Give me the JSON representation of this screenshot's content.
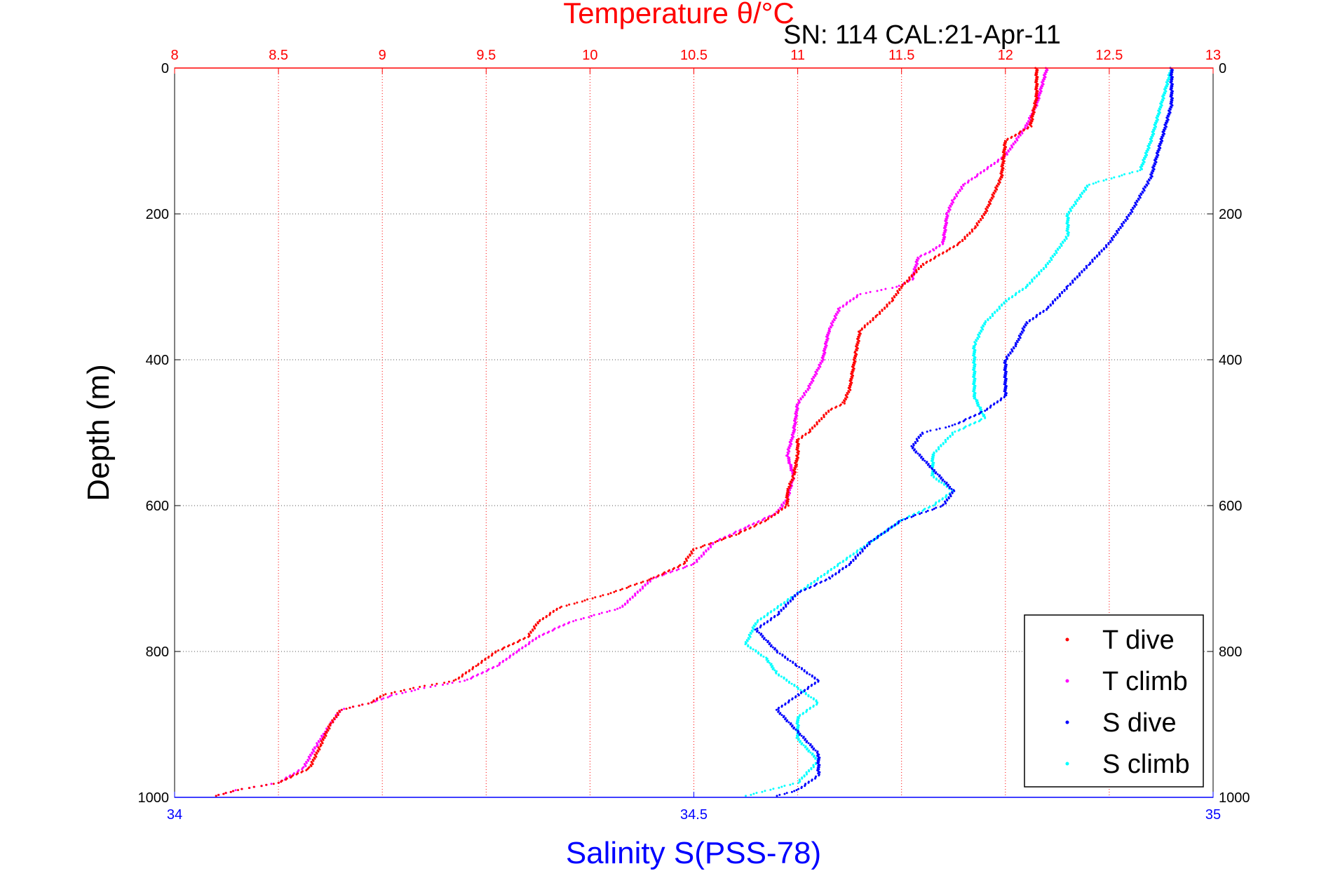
{
  "chart_data": {
    "type": "scatter",
    "title": "Temperature θ/°C",
    "subtitle": "SN: 114  CAL:21-Apr-11",
    "xlabel": "Salinity S(PSS-78)",
    "ylabel": "Depth (m)",
    "x_top": {
      "label": "Temperature θ/°C",
      "range": [
        8,
        13
      ],
      "ticks": [
        "8",
        "8.5",
        "9",
        "9.5",
        "10",
        "10.5",
        "11",
        "11.5",
        "12",
        "12.5",
        "13"
      ],
      "color": "#ff0000"
    },
    "x_bottom": {
      "label": "Salinity S(PSS-78)",
      "range": [
        34,
        35
      ],
      "ticks": [
        "34",
        "34.5",
        "35"
      ],
      "color": "#0000ff"
    },
    "y": {
      "range": [
        0,
        1000
      ],
      "reversed": true,
      "ticks": [
        "0",
        "200",
        "400",
        "600",
        "800",
        "1000"
      ]
    },
    "grid": true,
    "legend_position": "bottom-right",
    "series": [
      {
        "name": "T dive",
        "axis": "temperature",
        "color": "#ff0000",
        "points": [
          [
            12.15,
            0
          ],
          [
            12.15,
            40
          ],
          [
            12.12,
            80
          ],
          [
            12.0,
            100
          ],
          [
            11.98,
            150
          ],
          [
            11.9,
            200
          ],
          [
            11.85,
            220
          ],
          [
            11.78,
            240
          ],
          [
            11.72,
            250
          ],
          [
            11.6,
            270
          ],
          [
            11.5,
            300
          ],
          [
            11.45,
            320
          ],
          [
            11.38,
            340
          ],
          [
            11.3,
            360
          ],
          [
            11.28,
            390
          ],
          [
            11.25,
            440
          ],
          [
            11.22,
            460
          ],
          [
            11.15,
            470
          ],
          [
            11.05,
            500
          ],
          [
            11.0,
            510
          ],
          [
            11.0,
            530
          ],
          [
            10.98,
            560
          ],
          [
            10.95,
            580
          ],
          [
            10.95,
            600
          ],
          [
            10.85,
            620
          ],
          [
            10.7,
            640
          ],
          [
            10.5,
            660
          ],
          [
            10.45,
            680
          ],
          [
            10.3,
            700
          ],
          [
            10.1,
            720
          ],
          [
            9.85,
            740
          ],
          [
            9.75,
            760
          ],
          [
            9.7,
            780
          ],
          [
            9.55,
            800
          ],
          [
            9.45,
            820
          ],
          [
            9.35,
            840
          ],
          [
            9.15,
            850
          ],
          [
            9.0,
            860
          ],
          [
            8.95,
            870
          ],
          [
            8.8,
            880
          ],
          [
            8.75,
            900
          ],
          [
            8.7,
            930
          ],
          [
            8.65,
            960
          ],
          [
            8.5,
            980
          ],
          [
            8.3,
            990
          ],
          [
            8.2,
            998
          ]
        ]
      },
      {
        "name": "T climb",
        "axis": "temperature",
        "color": "#ff00ff",
        "points": [
          [
            12.2,
            0
          ],
          [
            12.15,
            50
          ],
          [
            12.1,
            80
          ],
          [
            12.0,
            120
          ],
          [
            11.85,
            150
          ],
          [
            11.8,
            160
          ],
          [
            11.75,
            180
          ],
          [
            11.72,
            200
          ],
          [
            11.7,
            240
          ],
          [
            11.65,
            250
          ],
          [
            11.58,
            260
          ],
          [
            11.55,
            290
          ],
          [
            11.48,
            300
          ],
          [
            11.3,
            310
          ],
          [
            11.2,
            330
          ],
          [
            11.15,
            360
          ],
          [
            11.12,
            400
          ],
          [
            11.05,
            440
          ],
          [
            11.0,
            460
          ],
          [
            10.98,
            500
          ],
          [
            10.95,
            530
          ],
          [
            10.98,
            560
          ],
          [
            10.95,
            590
          ],
          [
            10.9,
            610
          ],
          [
            10.75,
            630
          ],
          [
            10.6,
            650
          ],
          [
            10.5,
            680
          ],
          [
            10.3,
            700
          ],
          [
            10.15,
            740
          ],
          [
            9.9,
            760
          ],
          [
            9.75,
            780
          ],
          [
            9.65,
            800
          ],
          [
            9.55,
            820
          ],
          [
            9.4,
            840
          ],
          [
            9.2,
            850
          ],
          [
            9.05,
            860
          ],
          [
            8.95,
            870
          ],
          [
            8.8,
            880
          ],
          [
            8.75,
            900
          ],
          [
            8.68,
            930
          ],
          [
            8.62,
            960
          ],
          [
            8.5,
            980
          ],
          [
            8.3,
            990
          ],
          [
            8.2,
            998
          ]
        ]
      },
      {
        "name": "S dive",
        "axis": "salinity",
        "color": "#0000ff",
        "points": [
          [
            34.96,
            0
          ],
          [
            34.96,
            50
          ],
          [
            34.95,
            100
          ],
          [
            34.94,
            150
          ],
          [
            34.92,
            200
          ],
          [
            34.9,
            240
          ],
          [
            34.88,
            270
          ],
          [
            34.86,
            300
          ],
          [
            34.84,
            330
          ],
          [
            34.82,
            350
          ],
          [
            34.81,
            380
          ],
          [
            34.8,
            400
          ],
          [
            34.8,
            450
          ],
          [
            34.78,
            470
          ],
          [
            34.75,
            490
          ],
          [
            34.72,
            500
          ],
          [
            34.71,
            520
          ],
          [
            34.73,
            550
          ],
          [
            34.75,
            580
          ],
          [
            34.74,
            600
          ],
          [
            34.7,
            620
          ],
          [
            34.67,
            650
          ],
          [
            34.65,
            680
          ],
          [
            34.63,
            700
          ],
          [
            34.6,
            720
          ],
          [
            34.58,
            750
          ],
          [
            34.56,
            770
          ],
          [
            34.58,
            800
          ],
          [
            34.6,
            820
          ],
          [
            34.62,
            840
          ],
          [
            34.6,
            860
          ],
          [
            34.58,
            880
          ],
          [
            34.6,
            910
          ],
          [
            34.62,
            940
          ],
          [
            34.62,
            970
          ],
          [
            34.6,
            990
          ],
          [
            34.58,
            998
          ]
        ]
      },
      {
        "name": "S climb",
        "axis": "salinity",
        "color": "#00ffff",
        "points": [
          [
            34.96,
            0
          ],
          [
            34.95,
            50
          ],
          [
            34.94,
            100
          ],
          [
            34.93,
            140
          ],
          [
            34.88,
            160
          ],
          [
            34.86,
            200
          ],
          [
            34.86,
            230
          ],
          [
            34.84,
            270
          ],
          [
            34.82,
            300
          ],
          [
            34.8,
            320
          ],
          [
            34.78,
            350
          ],
          [
            34.77,
            380
          ],
          [
            34.77,
            450
          ],
          [
            34.78,
            480
          ],
          [
            34.75,
            500
          ],
          [
            34.73,
            530
          ],
          [
            34.73,
            560
          ],
          [
            34.75,
            580
          ],
          [
            34.73,
            600
          ],
          [
            34.7,
            620
          ],
          [
            34.67,
            650
          ],
          [
            34.64,
            680
          ],
          [
            34.6,
            720
          ],
          [
            34.56,
            760
          ],
          [
            34.55,
            790
          ],
          [
            34.57,
            810
          ],
          [
            34.58,
            830
          ],
          [
            34.6,
            850
          ],
          [
            34.62,
            870
          ],
          [
            34.6,
            890
          ],
          [
            34.6,
            920
          ],
          [
            34.62,
            950
          ],
          [
            34.6,
            980
          ],
          [
            34.55,
            998
          ]
        ]
      }
    ]
  }
}
